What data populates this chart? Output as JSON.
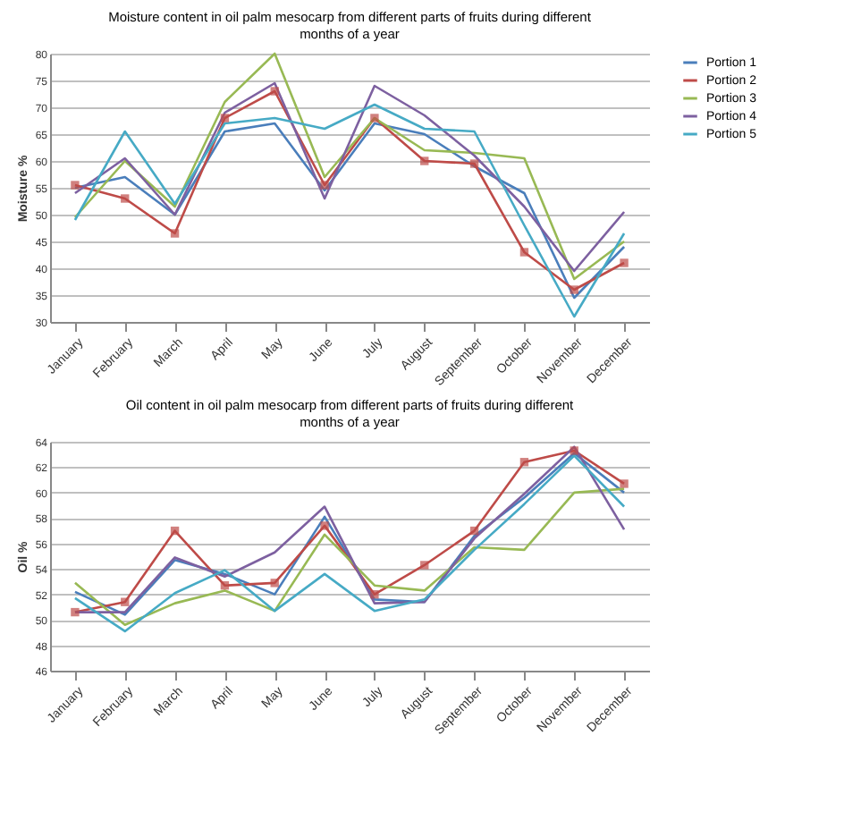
{
  "chart_data": [
    {
      "type": "line",
      "title": "Moisture content in oil palm mesocarp from different parts of fruits during different months of a year",
      "ylabel": "Moisture %",
      "categories": [
        "January",
        "February",
        "March",
        "April",
        "May",
        "June",
        "July",
        "August",
        "September",
        "October",
        "November",
        "December"
      ],
      "ylim": [
        30,
        80
      ],
      "yticks": [
        30,
        35,
        40,
        45,
        50,
        55,
        60,
        65,
        70,
        75,
        80
      ],
      "grid": "y",
      "legend": "right",
      "marker": "none",
      "series": [
        {
          "name": "Portion 1",
          "color": "#4a7ebb",
          "values": [
            55,
            57,
            50,
            65.5,
            67,
            54.5,
            67,
            65,
            59,
            54,
            34.5,
            44
          ]
        },
        {
          "name": "Portion 2",
          "color": "#be4b48",
          "marker": "square",
          "values": [
            55.5,
            53,
            46.5,
            68,
            73,
            55.5,
            68,
            60,
            59.5,
            43,
            36,
            41
          ]
        },
        {
          "name": "Portion 3",
          "color": "#98b954",
          "values": [
            49.5,
            60,
            51.5,
            71,
            80,
            57,
            68,
            62,
            61.5,
            60.5,
            38,
            45
          ]
        },
        {
          "name": "Portion 4",
          "color": "#7d60a0",
          "values": [
            54,
            60.5,
            50,
            69,
            74.5,
            53,
            74,
            68.5,
            61,
            51.5,
            39.5,
            50.5
          ]
        },
        {
          "name": "Portion 5",
          "color": "#46aac5",
          "values": [
            49,
            65.5,
            52,
            67,
            68,
            66,
            70.5,
            66,
            65.5,
            48,
            31,
            46.5
          ]
        }
      ]
    },
    {
      "type": "line",
      "title": "Oil content in oil palm mesocarp from different parts of fruits during different months of a year",
      "ylabel": "Oil %",
      "categories": [
        "January",
        "February",
        "March",
        "April",
        "May",
        "June",
        "July",
        "August",
        "September",
        "October",
        "November",
        "December"
      ],
      "ylim": [
        46,
        64
      ],
      "yticks": [
        46,
        48,
        50,
        52,
        54,
        56,
        58,
        60,
        62,
        64
      ],
      "grid": "y",
      "legend": "right",
      "marker": "none",
      "series": [
        {
          "name": "Portion 1",
          "color": "#4a7ebb",
          "values": [
            52.2,
            50.4,
            54.7,
            53.6,
            52,
            58.1,
            51.6,
            51.4,
            56.6,
            59.6,
            63.1,
            60
          ]
        },
        {
          "name": "Portion 2",
          "color": "#be4b48",
          "marker": "square",
          "values": [
            50.6,
            51.4,
            57,
            52.7,
            52.9,
            57.4,
            52,
            54.3,
            57,
            62.4,
            63.3,
            60.7
          ]
        },
        {
          "name": "Portion 3",
          "color": "#98b954",
          "values": [
            52.9,
            49.6,
            51.3,
            52.3,
            50.7,
            56.7,
            52.7,
            52.3,
            55.7,
            55.5,
            60,
            60.3
          ]
        },
        {
          "name": "Portion 4",
          "color": "#7d60a0",
          "values": [
            50.6,
            50.6,
            54.9,
            53.4,
            55.3,
            58.9,
            51.3,
            51.4,
            56.4,
            59.9,
            63.6,
            57.1
          ]
        },
        {
          "name": "Portion 5",
          "color": "#46aac5",
          "values": [
            51.7,
            49.1,
            52.1,
            53.9,
            50.7,
            53.6,
            50.7,
            51.6,
            55.5,
            59.1,
            62.9,
            58.9
          ]
        }
      ]
    }
  ]
}
